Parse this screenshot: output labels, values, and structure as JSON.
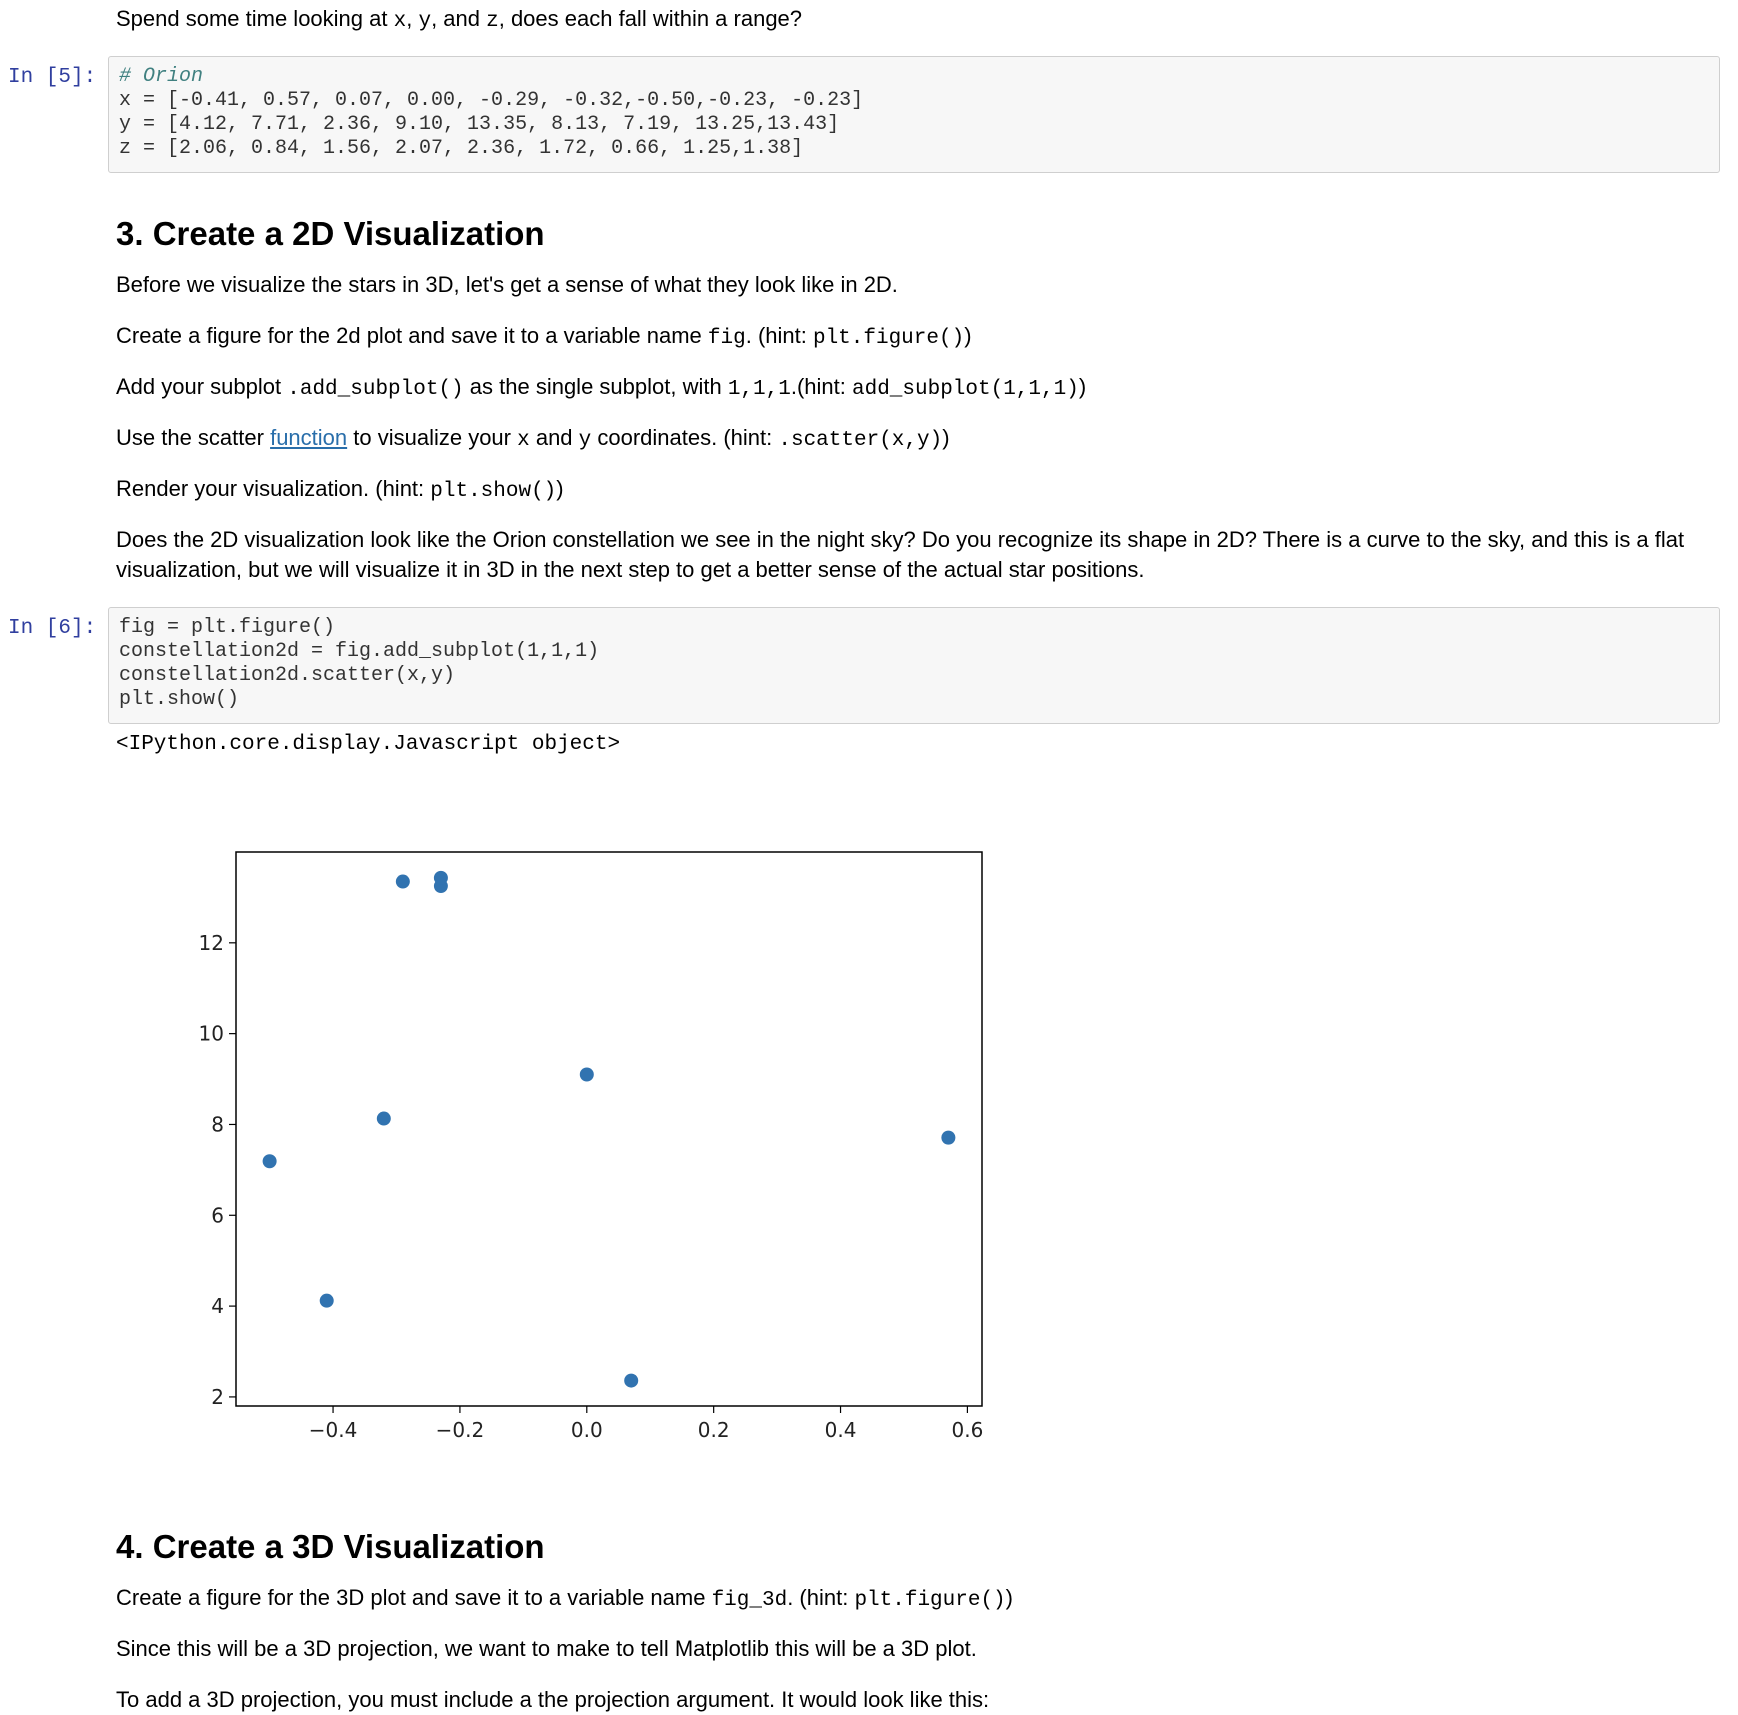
{
  "intro_text": {
    "pre": "Spend some time looking at ",
    "c1": "x",
    "s1": ", ",
    "c2": "y",
    "s2": ", and ",
    "c3": "z",
    "post": ", does each fall within a range?"
  },
  "cell5": {
    "prompt": "In [5]:",
    "comment": "# Orion",
    "lines": [
      "x = [-0.41, 0.57, 0.07, 0.00, -0.29, -0.32,-0.50,-0.23, -0.23]",
      "y = [4.12, 7.71, 2.36, 9.10, 13.35, 8.13, 7.19, 13.25,13.43]",
      "z = [2.06, 0.84, 1.56, 2.07, 2.36, 1.72, 0.66, 1.25,1.38]"
    ]
  },
  "section3": {
    "heading": "3. Create a 2D Visualization",
    "p1": "Before we visualize the stars in 3D, let's get a sense of what they look like in 2D.",
    "p2": {
      "a": "Create a figure for the 2d plot and save it to a variable name ",
      "c1": "fig",
      "b": ". (hint: ",
      "c2": "plt.figure()",
      "d": ")"
    },
    "p3": {
      "a": "Add your subplot ",
      "c1": ".add_subplot()",
      "b": " as the single subplot, with ",
      "c2": "1,1,1",
      "d": ".(hint: ",
      "c3": "add_subplot(1,1,1)",
      "e": ")"
    },
    "p4": {
      "a": "Use the scatter ",
      "link": "function",
      "b": " to visualize your ",
      "c1": "x",
      "c": " and ",
      "c2": "y",
      "d": " coordinates. (hint: ",
      "c3": ".scatter(x,y)",
      "e": ")"
    },
    "p5": {
      "a": "Render your visualization. (hint: ",
      "c1": "plt.show()",
      "b": ")"
    },
    "p6": "Does the 2D visualization look like the Orion constellation we see in the night sky? Do you recognize its shape in 2D? There is a curve to the sky, and this is a flat visualization, but we will visualize it in 3D in the next step to get a better sense of the actual star positions."
  },
  "cell6": {
    "prompt": "In [6]:",
    "lines": [
      "fig = plt.figure()",
      "constellation2d = fig.add_subplot(1,1,1)",
      "constellation2d.scatter(x,y)",
      "plt.show()"
    ],
    "output": "<IPython.core.display.Javascript object>"
  },
  "chart_data": {
    "type": "scatter",
    "x": [
      -0.41,
      0.57,
      0.07,
      0.0,
      -0.29,
      -0.32,
      -0.5,
      -0.23,
      -0.23
    ],
    "y": [
      4.12,
      7.71,
      2.36,
      9.1,
      13.35,
      8.13,
      7.19,
      13.25,
      13.43
    ],
    "xlim": [
      -0.553,
      0.623
    ],
    "ylim": [
      1.8,
      14.0
    ],
    "xticks": [
      -0.4,
      -0.2,
      0.0,
      0.2,
      0.4,
      0.6
    ],
    "xtick_labels": [
      "−0.4",
      "−0.2",
      "0.0",
      "0.2",
      "0.4",
      "0.6"
    ],
    "yticks": [
      2,
      4,
      6,
      8,
      10,
      12
    ],
    "ytick_labels": [
      "2",
      "4",
      "6",
      "8",
      "10",
      "12"
    ],
    "color": "#3173b0",
    "title": "",
    "xlabel": "",
    "ylabel": "",
    "grid": false
  },
  "section4": {
    "heading": "4. Create a 3D Visualization",
    "p1": {
      "a": "Create a figure for the 3D plot and save it to a variable name ",
      "c1": "fig_3d",
      "b": ". (hint: ",
      "c2": "plt.figure()",
      "d": ")"
    },
    "p2": "Since this will be a 3D projection, we want to make to tell Matplotlib this will be a 3D plot.",
    "p3": "To add a 3D projection, you must include a the projection argument. It would look like this:"
  }
}
